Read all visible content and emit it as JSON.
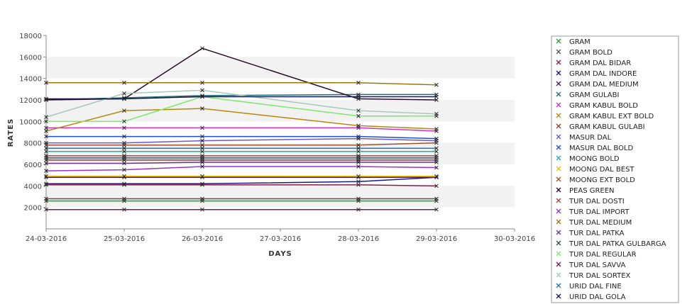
{
  "chart_data": {
    "type": "line",
    "xlabel": "DAYS",
    "ylabel": "RATES",
    "x_ticks": [
      "24-03-2016",
      "25-03-2016",
      "26-03-2016",
      "27-03-2016",
      "28-03-2016",
      "29-03-2016",
      "30-03-2016"
    ],
    "y_ticks": [
      2000,
      4000,
      6000,
      8000,
      10000,
      12000,
      14000,
      16000,
      18000
    ],
    "ylim": [
      0,
      18000
    ],
    "grid": "alternating horizontal bands",
    "legend_position": "right",
    "x_dates": [
      "24-03-2016",
      "25-03-2016",
      "26-03-2016",
      "28-03-2016",
      "29-03-2016"
    ],
    "series": [
      {
        "name": "GRAM",
        "color": "#2a9d3a",
        "values": [
          2600,
          2600,
          2600,
          2600,
          2600
        ]
      },
      {
        "name": "GRAM BOLD",
        "color": "#555555",
        "values": [
          2800,
          2800,
          2800,
          2800,
          2800
        ]
      },
      {
        "name": "GRAM DAL BIDAR",
        "color": "#8b1a4a",
        "values": [
          4100,
          4100,
          4100,
          4100,
          4000
        ]
      },
      {
        "name": "GRAM DAL INDORE",
        "color": "#1a1a8b",
        "values": [
          4200,
          4200,
          4200,
          4400,
          4800
        ]
      },
      {
        "name": "GRAM DAL MEDIUM",
        "color": "#4b1a6b",
        "values": [
          4800,
          4800,
          4800,
          4800,
          4800
        ]
      },
      {
        "name": "GRAM GULABI",
        "color": "#1e6e6e",
        "values": [
          12000,
          12200,
          12400,
          12500,
          12500
        ]
      },
      {
        "name": "GRAM KABUL BOLD",
        "color": "#cc33cc",
        "values": [
          9400,
          9400,
          9400,
          9400,
          9100
        ]
      },
      {
        "name": "GRAM KABUL EXT BOLD",
        "color": "#b8860b",
        "values": [
          9100,
          11000,
          11200,
          9600,
          9300
        ]
      },
      {
        "name": "GRAM KABUL GULABI",
        "color": "#8b3a3a",
        "values": [
          6400,
          6400,
          6400,
          6400,
          6400
        ]
      },
      {
        "name": "MASUR DAL",
        "color": "#6a5acd",
        "values": [
          8000,
          8000,
          8200,
          8400,
          8200
        ]
      },
      {
        "name": "MASUR DAL BOLD",
        "color": "#1f4fd0",
        "values": [
          8600,
          8600,
          8600,
          8600,
          8400
        ]
      },
      {
        "name": "MOONG BOLD",
        "color": "#20b2aa",
        "values": [
          7200,
          7200,
          7200,
          7200,
          7200
        ]
      },
      {
        "name": "MOONG DAL BEST",
        "color": "#e8c000",
        "values": [
          4900,
          4900,
          4900,
          4900,
          4900
        ]
      },
      {
        "name": "MOONG EXT BOLD",
        "color": "#a0522d",
        "values": [
          7800,
          7800,
          7800,
          7800,
          8000
        ]
      },
      {
        "name": "PEAS GREEN",
        "color": "#2a0a2a",
        "values": [
          12000,
          12100,
          16800,
          12100,
          12000
        ]
      },
      {
        "name": "TUR DAL DOSTI",
        "color": "#b04040",
        "values": [
          6800,
          6800,
          6800,
          6800,
          6800
        ]
      },
      {
        "name": "TUR DAL IMPORT",
        "color": "#9932cc",
        "values": [
          5400,
          5500,
          5800,
          5800,
          5700
        ]
      },
      {
        "name": "TUR DAL MEDIUM",
        "color": "#9a7a10",
        "values": [
          13600,
          13600,
          13600,
          13600,
          13400
        ]
      },
      {
        "name": "TUR DAL PATKA",
        "color": "#6b3a8b",
        "values": [
          6100,
          6100,
          6200,
          6200,
          6200
        ]
      },
      {
        "name": "TUR DAL PATKA GULBARGA",
        "color": "#2f4f5f",
        "values": [
          6600,
          6600,
          6600,
          6600,
          6600
        ]
      },
      {
        "name": "TUR DAL REGULAR",
        "color": "#7cea6c",
        "values": [
          10000,
          10000,
          12300,
          10500,
          10500
        ]
      },
      {
        "name": "TUR DAL SAVVA",
        "color": "#7a1a5a",
        "values": [
          1800,
          1800,
          1800,
          1800,
          1800
        ]
      },
      {
        "name": "TUR DAL SORTEX",
        "color": "#a8c8b8",
        "values": [
          10400,
          12600,
          12900,
          11000,
          10700
        ]
      },
      {
        "name": "URID DAL FINE",
        "color": "#1e7ab8",
        "values": [
          7500,
          7500,
          7500,
          7500,
          7500
        ]
      },
      {
        "name": "URID DAL GOLA",
        "color": "#1a1a50",
        "values": [
          12100,
          12100,
          12300,
          12300,
          12300
        ]
      }
    ]
  }
}
